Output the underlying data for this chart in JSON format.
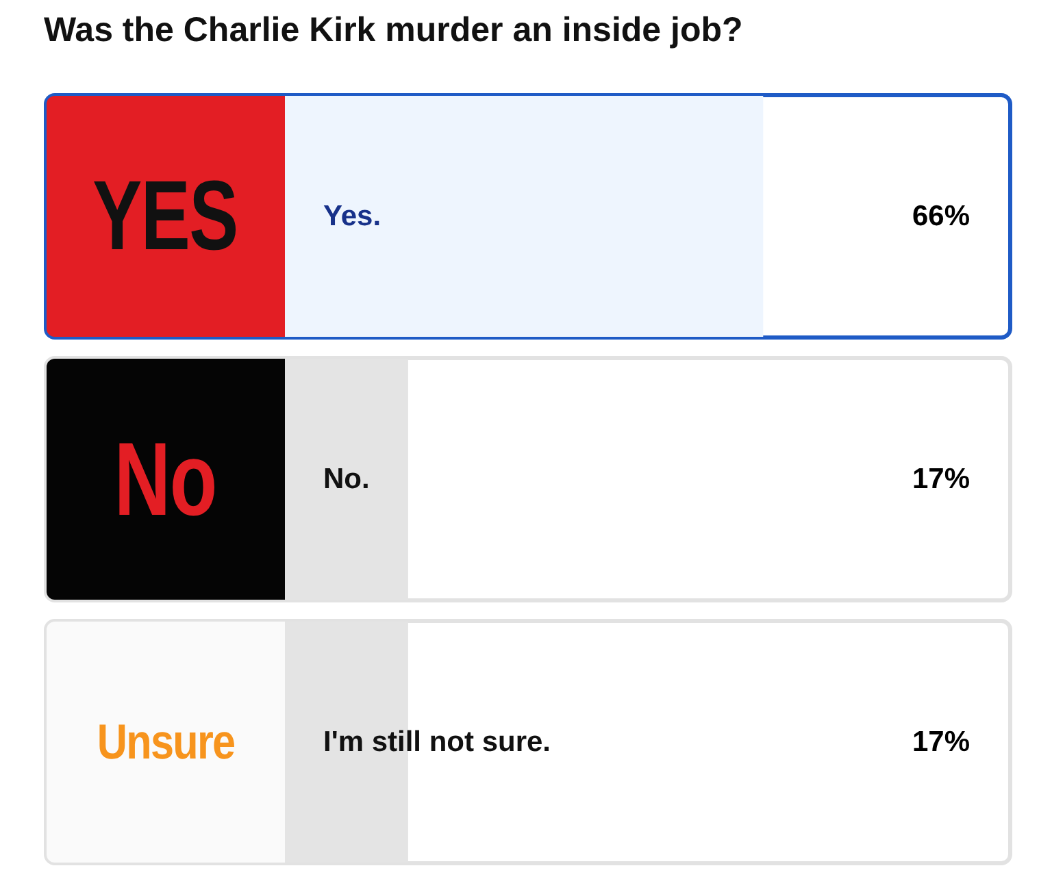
{
  "chart_data": {
    "type": "bar",
    "orientation": "horizontal",
    "title": "Was the Charlie Kirk murder an inside job?",
    "categories": [
      "Yes.",
      "No.",
      "I'm still not sure."
    ],
    "values": [
      66,
      17,
      17
    ],
    "colors": [
      "#eef5fe",
      "#e4e4e4",
      "#e4e4e4"
    ],
    "value_labels": [
      "66%",
      "17%",
      "17%"
    ],
    "annotations": [
      "YES",
      "No",
      "Unsure"
    ]
  }
}
